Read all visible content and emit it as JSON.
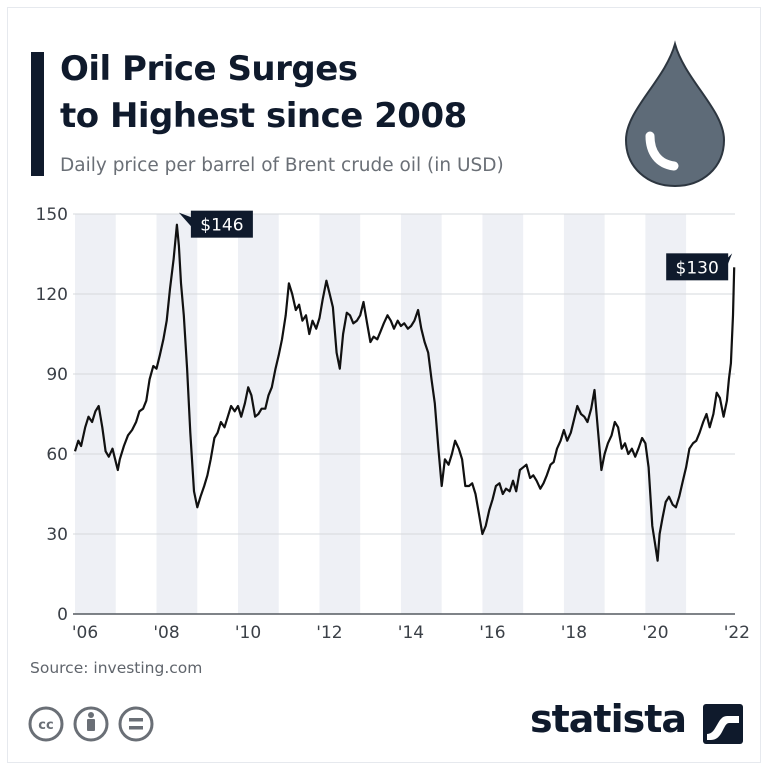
{
  "header": {
    "title_line1": "Oil Price Surges",
    "title_line2": "to Highest since 2008",
    "subtitle": "Daily price per barrel of Brent crude oil (in USD)"
  },
  "footer": {
    "source": "Source: investing.com",
    "brand": "statista",
    "license_icons": [
      "cc-icon",
      "attribution-icon",
      "no-derivatives-icon"
    ]
  },
  "colors": {
    "line": "#111111",
    "band": "#eef0f5",
    "grid": "#d6d8dc",
    "label_bg": "#0f1a2c",
    "label_text": "#ffffff",
    "drop": "#5e6b78",
    "text": "#0f1a2c"
  },
  "chart_data": {
    "type": "line",
    "title": "Oil Price Surges to Highest since 2008",
    "subtitle": "Daily price per barrel of Brent crude oil (in USD)",
    "xlabel": "",
    "ylabel": "",
    "ylim": [
      0,
      150
    ],
    "yticks": [
      0,
      30,
      60,
      90,
      120,
      150
    ],
    "xlim": [
      2005.95,
      2022.2
    ],
    "xticks": [
      {
        "value": 2006,
        "label": "'06"
      },
      {
        "value": 2008,
        "label": "'08"
      },
      {
        "value": 2010,
        "label": "'10"
      },
      {
        "value": 2012,
        "label": "'12"
      },
      {
        "value": 2014,
        "label": "'14"
      },
      {
        "value": 2016,
        "label": "'16"
      },
      {
        "value": 2018,
        "label": "'18"
      },
      {
        "value": 2020,
        "label": "'20"
      },
      {
        "value": 2022,
        "label": "'22"
      }
    ],
    "grid": true,
    "shaded_years": [
      2006,
      2008,
      2010,
      2012,
      2014,
      2016,
      2018,
      2020
    ],
    "series": [
      {
        "points": [
          [
            2006.0,
            61
          ],
          [
            2006.08,
            65
          ],
          [
            2006.15,
            63
          ],
          [
            2006.25,
            70
          ],
          [
            2006.33,
            74
          ],
          [
            2006.42,
            72
          ],
          [
            2006.5,
            76
          ],
          [
            2006.58,
            78
          ],
          [
            2006.67,
            70
          ],
          [
            2006.75,
            61
          ],
          [
            2006.83,
            59
          ],
          [
            2006.92,
            62
          ],
          [
            2007.0,
            57
          ],
          [
            2007.05,
            54
          ],
          [
            2007.1,
            58
          ],
          [
            2007.2,
            63
          ],
          [
            2007.3,
            67
          ],
          [
            2007.4,
            69
          ],
          [
            2007.5,
            72
          ],
          [
            2007.58,
            76
          ],
          [
            2007.67,
            77
          ],
          [
            2007.75,
            80
          ],
          [
            2007.83,
            88
          ],
          [
            2007.92,
            93
          ],
          [
            2008.0,
            92
          ],
          [
            2008.08,
            97
          ],
          [
            2008.17,
            103
          ],
          [
            2008.25,
            110
          ],
          [
            2008.33,
            122
          ],
          [
            2008.42,
            133
          ],
          [
            2008.5,
            146
          ],
          [
            2008.55,
            138
          ],
          [
            2008.6,
            124
          ],
          [
            2008.67,
            112
          ],
          [
            2008.75,
            92
          ],
          [
            2008.83,
            68
          ],
          [
            2008.92,
            46
          ],
          [
            2009.0,
            40
          ],
          [
            2009.08,
            44
          ],
          [
            2009.17,
            48
          ],
          [
            2009.25,
            52
          ],
          [
            2009.33,
            58
          ],
          [
            2009.42,
            66
          ],
          [
            2009.5,
            68
          ],
          [
            2009.58,
            72
          ],
          [
            2009.67,
            70
          ],
          [
            2009.75,
            74
          ],
          [
            2009.83,
            78
          ],
          [
            2009.92,
            76
          ],
          [
            2010.0,
            78
          ],
          [
            2010.08,
            74
          ],
          [
            2010.17,
            79
          ],
          [
            2010.25,
            85
          ],
          [
            2010.33,
            82
          ],
          [
            2010.42,
            74
          ],
          [
            2010.5,
            75
          ],
          [
            2010.58,
            77
          ],
          [
            2010.67,
            77
          ],
          [
            2010.75,
            82
          ],
          [
            2010.83,
            85
          ],
          [
            2010.92,
            92
          ],
          [
            2011.0,
            97
          ],
          [
            2011.08,
            103
          ],
          [
            2011.17,
            112
          ],
          [
            2011.25,
            124
          ],
          [
            2011.33,
            120
          ],
          [
            2011.42,
            114
          ],
          [
            2011.5,
            116
          ],
          [
            2011.58,
            110
          ],
          [
            2011.67,
            112
          ],
          [
            2011.75,
            105
          ],
          [
            2011.83,
            110
          ],
          [
            2011.92,
            107
          ],
          [
            2012.0,
            111
          ],
          [
            2012.08,
            118
          ],
          [
            2012.17,
            125
          ],
          [
            2012.25,
            120
          ],
          [
            2012.33,
            115
          ],
          [
            2012.42,
            98
          ],
          [
            2012.5,
            92
          ],
          [
            2012.58,
            105
          ],
          [
            2012.67,
            113
          ],
          [
            2012.75,
            112
          ],
          [
            2012.83,
            109
          ],
          [
            2012.92,
            110
          ],
          [
            2013.0,
            112
          ],
          [
            2013.08,
            117
          ],
          [
            2013.17,
            109
          ],
          [
            2013.25,
            102
          ],
          [
            2013.33,
            104
          ],
          [
            2013.42,
            103
          ],
          [
            2013.5,
            106
          ],
          [
            2013.58,
            109
          ],
          [
            2013.67,
            112
          ],
          [
            2013.75,
            110
          ],
          [
            2013.83,
            107
          ],
          [
            2013.92,
            110
          ],
          [
            2014.0,
            108
          ],
          [
            2014.08,
            109
          ],
          [
            2014.17,
            107
          ],
          [
            2014.25,
            108
          ],
          [
            2014.33,
            110
          ],
          [
            2014.42,
            114
          ],
          [
            2014.5,
            107
          ],
          [
            2014.58,
            102
          ],
          [
            2014.67,
            98
          ],
          [
            2014.75,
            88
          ],
          [
            2014.83,
            79
          ],
          [
            2014.92,
            62
          ],
          [
            2015.0,
            48
          ],
          [
            2015.08,
            58
          ],
          [
            2015.17,
            56
          ],
          [
            2015.25,
            60
          ],
          [
            2015.33,
            65
          ],
          [
            2015.42,
            62
          ],
          [
            2015.5,
            58
          ],
          [
            2015.58,
            48
          ],
          [
            2015.67,
            48
          ],
          [
            2015.75,
            49
          ],
          [
            2015.83,
            45
          ],
          [
            2015.92,
            37
          ],
          [
            2016.0,
            30
          ],
          [
            2016.08,
            33
          ],
          [
            2016.17,
            39
          ],
          [
            2016.25,
            43
          ],
          [
            2016.33,
            48
          ],
          [
            2016.42,
            49
          ],
          [
            2016.5,
            45
          ],
          [
            2016.58,
            47
          ],
          [
            2016.67,
            46
          ],
          [
            2016.75,
            50
          ],
          [
            2016.83,
            46
          ],
          [
            2016.92,
            54
          ],
          [
            2017.0,
            55
          ],
          [
            2017.08,
            56
          ],
          [
            2017.17,
            51
          ],
          [
            2017.25,
            52
          ],
          [
            2017.33,
            50
          ],
          [
            2017.42,
            47
          ],
          [
            2017.5,
            49
          ],
          [
            2017.58,
            52
          ],
          [
            2017.67,
            56
          ],
          [
            2017.75,
            57
          ],
          [
            2017.83,
            62
          ],
          [
            2017.92,
            65
          ],
          [
            2018.0,
            69
          ],
          [
            2018.08,
            65
          ],
          [
            2018.17,
            68
          ],
          [
            2018.25,
            73
          ],
          [
            2018.33,
            78
          ],
          [
            2018.42,
            75
          ],
          [
            2018.5,
            74
          ],
          [
            2018.58,
            72
          ],
          [
            2018.67,
            77
          ],
          [
            2018.75,
            84
          ],
          [
            2018.83,
            70
          ],
          [
            2018.92,
            54
          ],
          [
            2019.0,
            60
          ],
          [
            2019.08,
            64
          ],
          [
            2019.17,
            67
          ],
          [
            2019.25,
            72
          ],
          [
            2019.33,
            70
          ],
          [
            2019.42,
            62
          ],
          [
            2019.5,
            64
          ],
          [
            2019.58,
            60
          ],
          [
            2019.67,
            62
          ],
          [
            2019.75,
            59
          ],
          [
            2019.83,
            62
          ],
          [
            2019.92,
            66
          ],
          [
            2020.0,
            64
          ],
          [
            2020.08,
            55
          ],
          [
            2020.17,
            33
          ],
          [
            2020.25,
            25
          ],
          [
            2020.3,
            20
          ],
          [
            2020.35,
            30
          ],
          [
            2020.42,
            36
          ],
          [
            2020.5,
            42
          ],
          [
            2020.58,
            44
          ],
          [
            2020.67,
            41
          ],
          [
            2020.75,
            40
          ],
          [
            2020.83,
            44
          ],
          [
            2020.92,
            50
          ],
          [
            2021.0,
            55
          ],
          [
            2021.08,
            62
          ],
          [
            2021.17,
            64
          ],
          [
            2021.25,
            65
          ],
          [
            2021.33,
            68
          ],
          [
            2021.42,
            72
          ],
          [
            2021.5,
            75
          ],
          [
            2021.58,
            70
          ],
          [
            2021.67,
            75
          ],
          [
            2021.75,
            83
          ],
          [
            2021.83,
            81
          ],
          [
            2021.92,
            74
          ],
          [
            2022.0,
            80
          ],
          [
            2022.05,
            88
          ],
          [
            2022.1,
            94
          ],
          [
            2022.15,
            112
          ],
          [
            2022.18,
            130
          ]
        ]
      }
    ],
    "annotations": [
      {
        "label": "$146",
        "x": 2008.5,
        "y": 146
      },
      {
        "label": "$130",
        "x": 2022.18,
        "y": 130
      }
    ]
  }
}
